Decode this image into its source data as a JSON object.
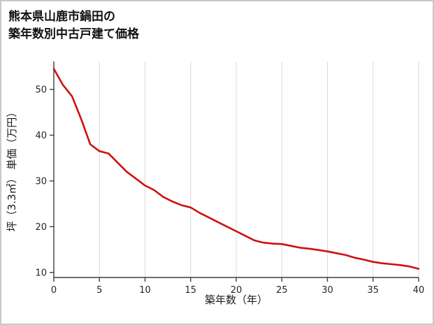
{
  "page": {
    "title_line1": "熊本県山鹿市鍋田の",
    "title_line2": "築年数別中古戸建て価格"
  },
  "chart_data": {
    "type": "line",
    "title": "熊本県山鹿市鍋田の 築年数別中古戸建て価格",
    "xlabel": "築年数（年）",
    "ylabel": "坪（3.3㎡） 単価（万円）",
    "x": [
      0,
      1,
      2,
      3,
      4,
      5,
      6,
      7,
      8,
      9,
      10,
      11,
      12,
      13,
      14,
      15,
      16,
      17,
      18,
      19,
      20,
      21,
      22,
      23,
      24,
      25,
      26,
      27,
      28,
      29,
      30,
      31,
      32,
      33,
      34,
      35,
      36,
      37,
      38,
      39,
      40
    ],
    "values": [
      54.5,
      51.0,
      48.5,
      43.5,
      38.0,
      36.5,
      36.0,
      34.0,
      32.0,
      30.5,
      29.0,
      28.0,
      26.5,
      25.5,
      24.7,
      24.2,
      23.0,
      22.0,
      21.0,
      20.0,
      19.0,
      18.0,
      17.0,
      16.5,
      16.3,
      16.2,
      15.8,
      15.4,
      15.2,
      14.9,
      14.6,
      14.2,
      13.8,
      13.2,
      12.8,
      12.3,
      12.0,
      11.8,
      11.6,
      11.3,
      10.8
    ],
    "xlim": [
      0,
      40
    ],
    "ylim": [
      8.9,
      56.1
    ],
    "xticks": [
      0,
      5,
      10,
      15,
      20,
      25,
      30,
      35,
      40
    ],
    "yticks": [
      10,
      20,
      30,
      40,
      50
    ],
    "grid": "vertical-only",
    "legend": "none",
    "line_color": "#cc1111",
    "axis_color": "#3f3f3f",
    "grid_color": "#d9d9d9",
    "background_color": "#ffffff",
    "border_color": "#c9c9c9"
  }
}
